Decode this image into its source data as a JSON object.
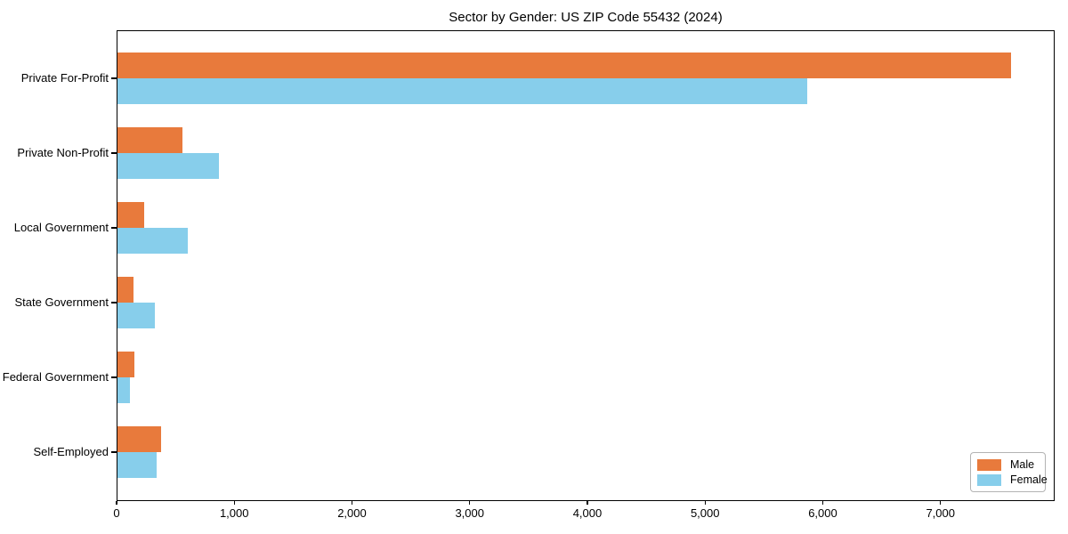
{
  "chart_data": {
    "type": "bar",
    "orientation": "horizontal",
    "title": "Sector by Gender: US ZIP Code 55432 (2024)",
    "categories": [
      "Private For-Profit",
      "Private Non-Profit",
      "Local Government",
      "State Government",
      "Federal Government",
      "Self-Employed"
    ],
    "series": [
      {
        "name": "Male",
        "color": "#e87a3c",
        "values": [
          7600,
          560,
          235,
          140,
          150,
          375
        ]
      },
      {
        "name": "Female",
        "color": "#87ceeb",
        "values": [
          5870,
          870,
          605,
          325,
          110,
          340
        ]
      }
    ],
    "xlabel": "",
    "ylabel": "",
    "xlim": [
      0,
      7970
    ],
    "xticks": [
      0,
      1000,
      2000,
      3000,
      4000,
      5000,
      6000,
      7000
    ],
    "xtick_labels": [
      "0",
      "1,000",
      "2,000",
      "3,000",
      "4,000",
      "5,000",
      "6,000",
      "7,000"
    ],
    "grid": false,
    "legend": {
      "position": "lower right",
      "entries": [
        "Male",
        "Female"
      ]
    }
  }
}
